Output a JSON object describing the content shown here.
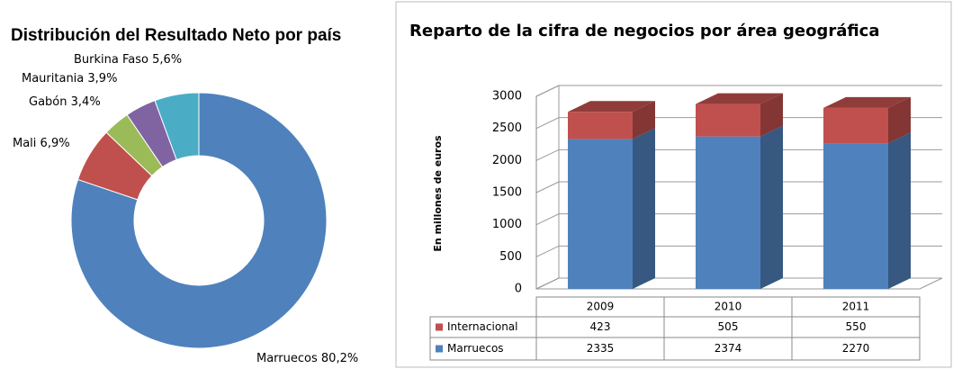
{
  "chart_data": [
    {
      "type": "donut",
      "title": "Distribución del Resultado Neto por país",
      "categories": [
        "Marruecos",
        "Mali",
        "Gabón",
        "Mauritania",
        "Burkina Faso"
      ],
      "values": [
        80.2,
        6.9,
        3.4,
        3.9,
        5.6
      ],
      "value_labels": [
        "80,2%",
        "6,9%",
        "3,4%",
        "3,9%",
        "5,6%"
      ],
      "colors": [
        "#4f81bd",
        "#c0504d",
        "#9bbb59",
        "#8064a2",
        "#4bacc6"
      ]
    },
    {
      "type": "bar3d_stacked",
      "title": "Reparto de la cifra de negocios por área geográfica",
      "y_label": "En  millones de euros",
      "categories": [
        "2009",
        "2010",
        "2011"
      ],
      "series": [
        {
          "name": "Marruecos",
          "color": "#4f81bd",
          "values": [
            2335,
            2374,
            2270
          ]
        },
        {
          "name": "Internacional",
          "color": "#c0504d",
          "values": [
            423,
            505,
            550
          ]
        }
      ],
      "ylim": [
        0,
        3000
      ],
      "yticks": [
        0,
        500,
        1000,
        1500,
        2000,
        2500,
        3000
      ],
      "grid": true
    }
  ]
}
